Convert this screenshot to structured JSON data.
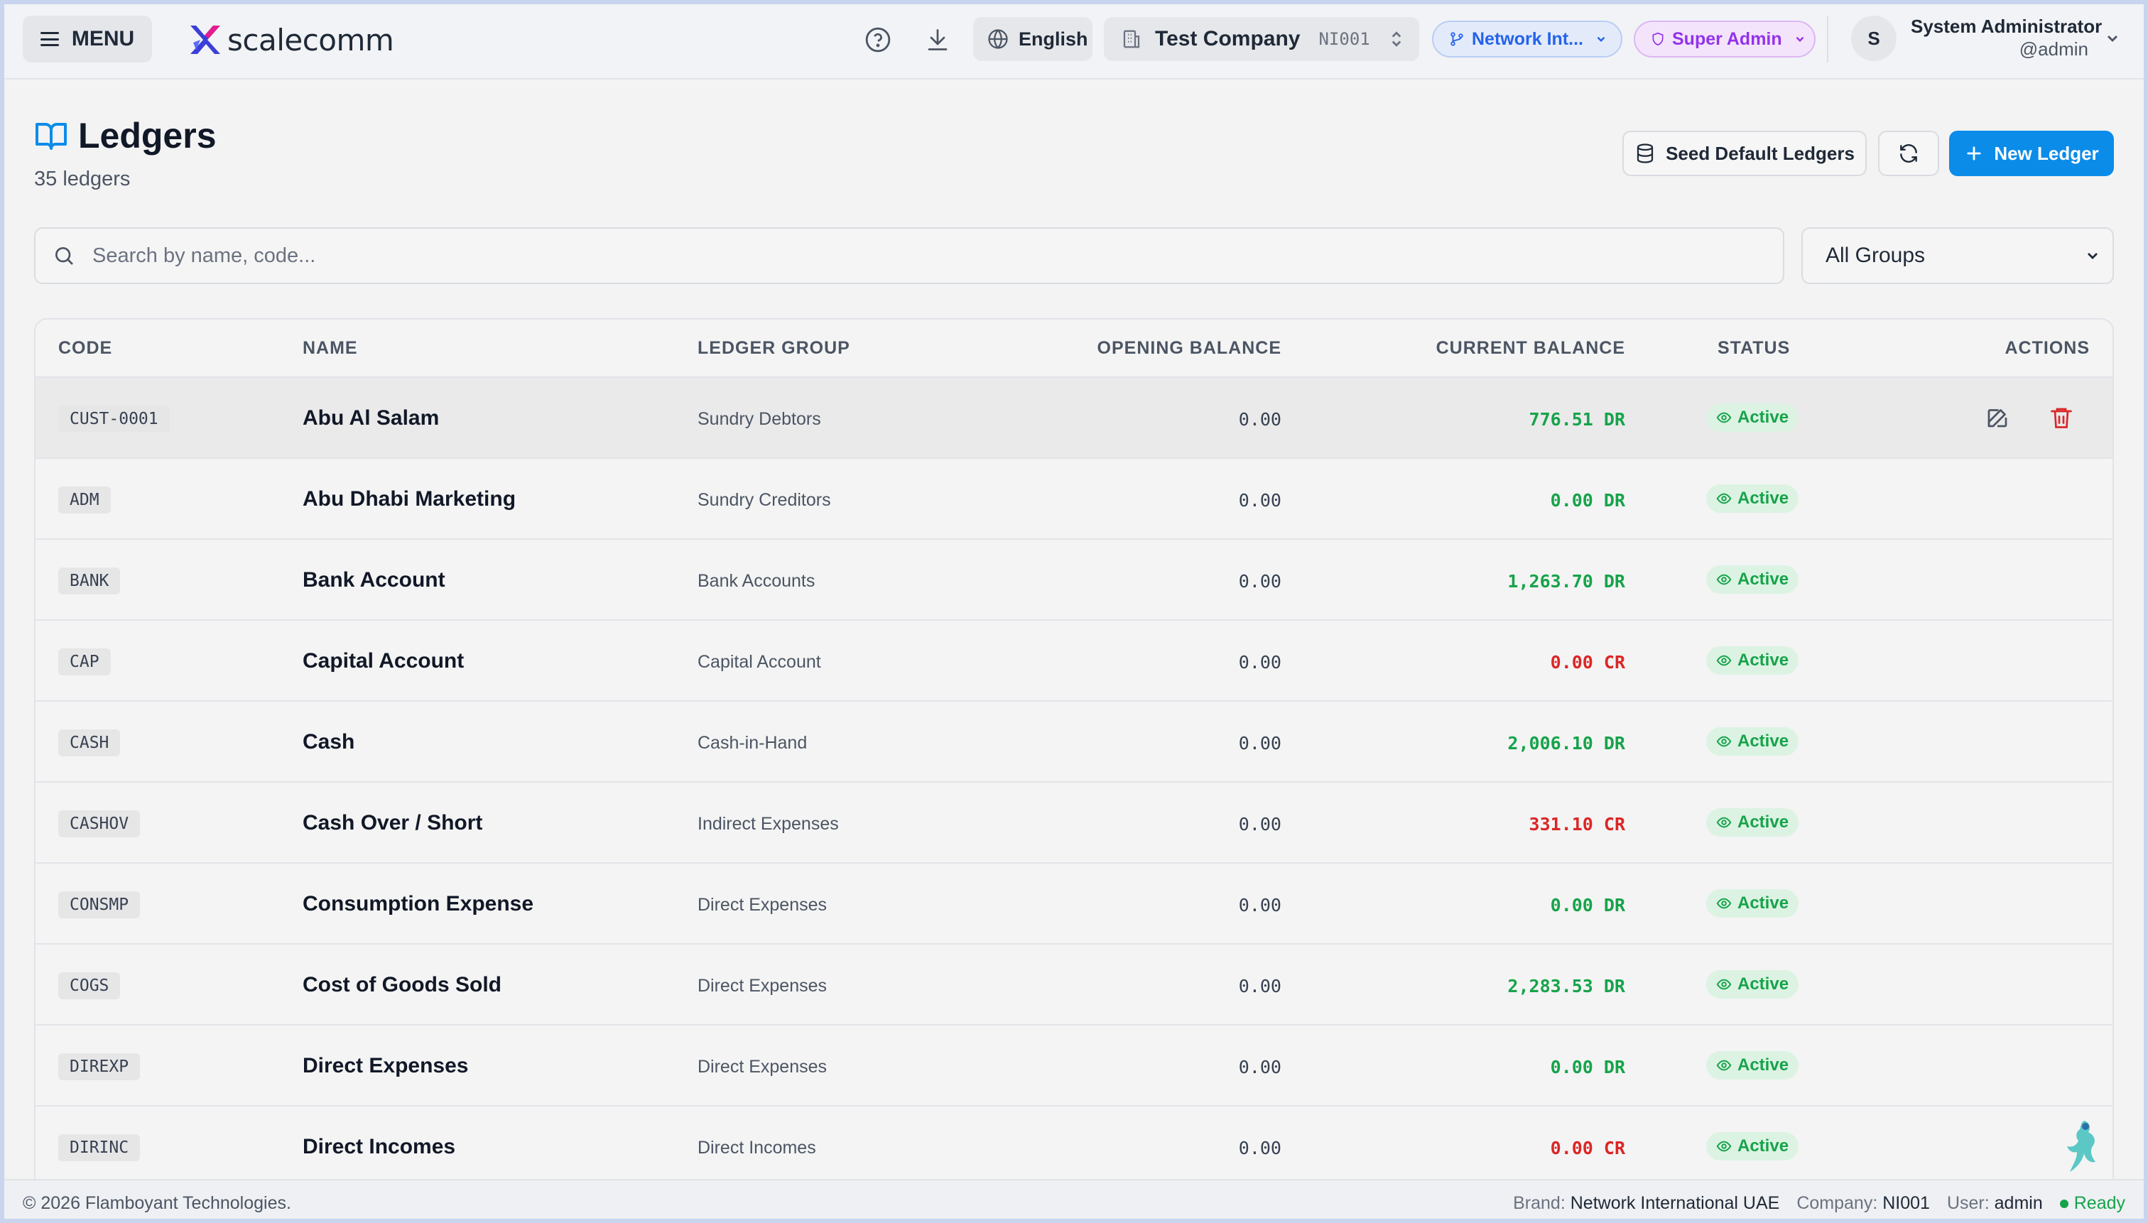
{
  "topbar": {
    "menu_label": "MENU",
    "brand": "scalecomm",
    "language": "English",
    "company_name": "Test Company",
    "company_code": "NI001",
    "network_label": "Network Int...",
    "role_label": "Super Admin",
    "avatar_initial": "S",
    "user_name": "System Administrator",
    "user_handle": "@admin"
  },
  "header": {
    "title": "Ledgers",
    "subtitle": "35 ledgers",
    "seed_label": "Seed Default Ledgers",
    "new_label": "New Ledger"
  },
  "search": {
    "placeholder": "Search by name, code...",
    "value": ""
  },
  "filter": {
    "selected": "All Groups"
  },
  "table": {
    "columns": [
      "CODE",
      "NAME",
      "LEDGER GROUP",
      "OPENING BALANCE",
      "CURRENT BALANCE",
      "STATUS",
      "ACTIONS"
    ],
    "rows": [
      {
        "code": "CUST-0001",
        "name": "Abu Al Salam",
        "group": "Sundry Debtors",
        "opening": "0.00",
        "current": "776.51 DR",
        "status": "Active"
      },
      {
        "code": "ADM",
        "name": "Abu Dhabi Marketing",
        "group": "Sundry Creditors",
        "opening": "0.00",
        "current": "0.00 DR",
        "status": "Active"
      },
      {
        "code": "BANK",
        "name": "Bank Account",
        "group": "Bank Accounts",
        "opening": "0.00",
        "current": "1,263.70 DR",
        "status": "Active"
      },
      {
        "code": "CAP",
        "name": "Capital Account",
        "group": "Capital Account",
        "opening": "0.00",
        "current": "0.00 CR",
        "status": "Active"
      },
      {
        "code": "CASH",
        "name": "Cash",
        "group": "Cash-in-Hand",
        "opening": "0.00",
        "current": "2,006.10 DR",
        "status": "Active"
      },
      {
        "code": "CASHOV",
        "name": "Cash Over / Short",
        "group": "Indirect Expenses",
        "opening": "0.00",
        "current": "331.10 CR",
        "status": "Active"
      },
      {
        "code": "CONSMP",
        "name": "Consumption Expense",
        "group": "Direct Expenses",
        "opening": "0.00",
        "current": "0.00 DR",
        "status": "Active"
      },
      {
        "code": "COGS",
        "name": "Cost of Goods Sold",
        "group": "Direct Expenses",
        "opening": "0.00",
        "current": "2,283.53 DR",
        "status": "Active"
      },
      {
        "code": "DIREXP",
        "name": "Direct Expenses",
        "group": "Direct Expenses",
        "opening": "0.00",
        "current": "0.00 DR",
        "status": "Active"
      },
      {
        "code": "DIRINC",
        "name": "Direct Incomes",
        "group": "Direct Incomes",
        "opening": "0.00",
        "current": "0.00 CR",
        "status": "Active"
      }
    ]
  },
  "footer": {
    "copyright": "© 2026 Flamboyant Technologies.",
    "brand_key": "Brand:",
    "brand_value": "Network International UAE",
    "company_key": "Company:",
    "company_value": "NI001",
    "user_key": "User:",
    "user_value": "admin",
    "status": "Ready"
  },
  "colors": {
    "accent": "#0c8ce9",
    "debit": "#16a34a",
    "credit": "#dc2626",
    "active_badge_bg": "#dcf3e3",
    "danger": "#dc2626"
  }
}
